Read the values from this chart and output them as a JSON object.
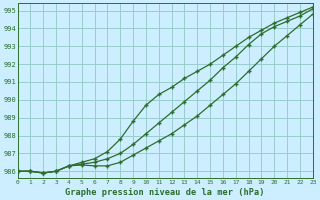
{
  "title": "Graphe pression niveau de la mer (hPa)",
  "bg_color": "#cceeff",
  "grid_color": "#99cccc",
  "line_color": "#2d6e2d",
  "xlim": [
    0,
    23
  ],
  "ylim": [
    985.6,
    995.4
  ],
  "yticks": [
    986,
    987,
    988,
    989,
    990,
    991,
    992,
    993,
    994,
    995
  ],
  "xticks": [
    0,
    1,
    2,
    3,
    4,
    5,
    6,
    7,
    8,
    9,
    10,
    11,
    12,
    13,
    14,
    15,
    16,
    17,
    18,
    19,
    20,
    21,
    22,
    23
  ],
  "series1": [
    986.0,
    986.0,
    985.9,
    986.0,
    986.3,
    986.35,
    986.3,
    986.3,
    986.5,
    986.9,
    987.3,
    987.7,
    988.1,
    988.6,
    989.1,
    989.7,
    990.3,
    990.9,
    991.6,
    992.3,
    993.0,
    993.6,
    994.2,
    994.8
  ],
  "series2": [
    986.0,
    986.0,
    985.9,
    986.0,
    986.3,
    986.4,
    986.5,
    986.7,
    987.0,
    987.5,
    988.1,
    988.7,
    989.3,
    989.9,
    990.5,
    991.1,
    991.8,
    992.4,
    993.1,
    993.7,
    994.1,
    994.4,
    994.7,
    995.1
  ],
  "series3": [
    986.0,
    986.0,
    985.9,
    986.0,
    986.3,
    986.5,
    986.7,
    987.1,
    987.8,
    988.8,
    989.7,
    990.3,
    990.7,
    991.2,
    991.6,
    992.0,
    992.5,
    993.0,
    993.5,
    993.9,
    994.3,
    994.6,
    994.9,
    995.2
  ]
}
